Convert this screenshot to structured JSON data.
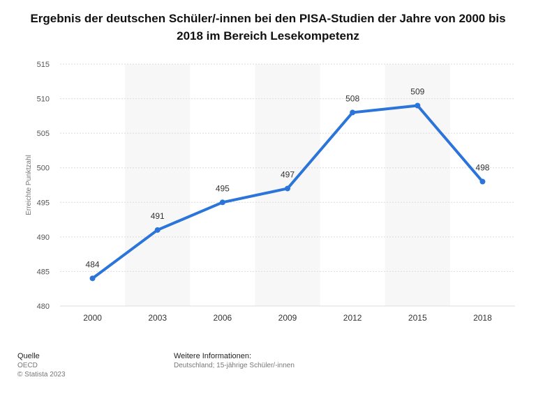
{
  "title": "Ergebnis der deutschen Schüler/-innen bei den PISA-Studien der Jahre von 2000 bis 2018 im Bereich Lesekompetenz",
  "footer": {
    "source_heading": "Quelle",
    "source": "OECD",
    "copyright": "© Statista 2023",
    "info_heading": "Weitere Informationen:",
    "info": "Deutschland; 15-jährige Schüler/-innen"
  },
  "colors": {
    "line": "#2b74d9",
    "band": "#f7f7f7",
    "grid": "#dcdcdc"
  },
  "chart_data": {
    "type": "line",
    "title": "Ergebnis der deutschen Schüler/-innen bei den PISA-Studien der Jahre von 2000 bis 2018 im Bereich Lesekompetenz",
    "xlabel": "",
    "ylabel": "Erreichte Punktzahl",
    "categories": [
      "2000",
      "2003",
      "2006",
      "2009",
      "2012",
      "2015",
      "2018"
    ],
    "series": [
      {
        "values": [
          484,
          491,
          495,
          497,
          508,
          509,
          498
        ]
      }
    ],
    "ylim": [
      480,
      515
    ],
    "yticks": [
      480,
      485,
      490,
      495,
      500,
      505,
      510,
      515
    ],
    "grid": true,
    "data_labels": true
  }
}
